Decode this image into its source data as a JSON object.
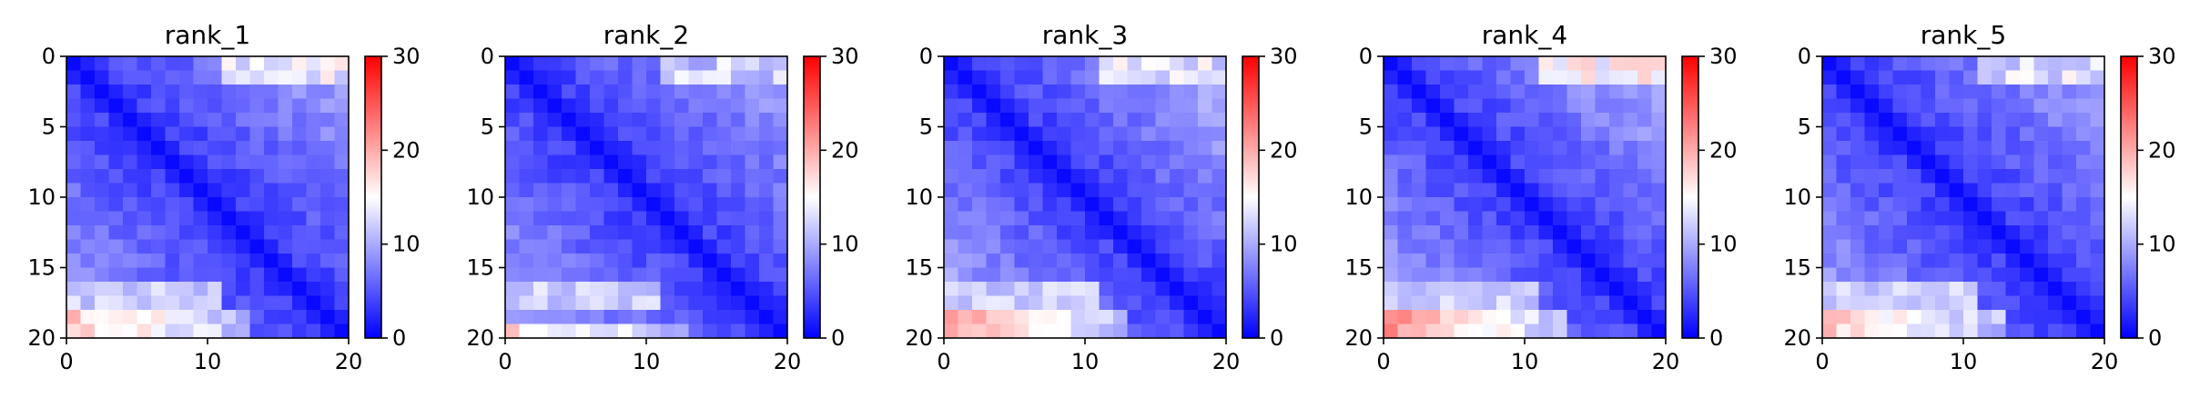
{
  "chart_data": [
    {
      "type": "heatmap",
      "title": "rank_1",
      "grid_size": 20,
      "xlim": [
        0,
        20
      ],
      "ylim": [
        20,
        0
      ],
      "x_ticks": [
        "0",
        "10",
        "20"
      ],
      "y_ticks": [
        "0",
        "5",
        "10",
        "15",
        "20"
      ],
      "colorbar": {
        "range": [
          0,
          30
        ],
        "ticks": [
          "0",
          "10",
          "20",
          "30"
        ],
        "colormap": "bwr"
      },
      "pattern": {
        "near_diag": 3,
        "far_diag": 10,
        "hot_rows": [
          18,
          19
        ],
        "hot_value": 18,
        "top_right_value": 15
      }
    },
    {
      "type": "heatmap",
      "title": "rank_2",
      "grid_size": 20,
      "xlim": [
        0,
        20
      ],
      "ylim": [
        20,
        0
      ],
      "x_ticks": [
        "0",
        "10",
        "20"
      ],
      "y_ticks": [
        "0",
        "5",
        "10",
        "15",
        "20"
      ],
      "colorbar": {
        "range": [
          0,
          30
        ],
        "ticks": [
          "0",
          "10",
          "20",
          "30"
        ],
        "colormap": "bwr"
      },
      "pattern": {
        "near_diag": 3,
        "far_diag": 10,
        "hot_rows": [
          19
        ],
        "hot_value": 17,
        "top_right_value": 13
      }
    },
    {
      "type": "heatmap",
      "title": "rank_3",
      "grid_size": 20,
      "xlim": [
        0,
        20
      ],
      "ylim": [
        20,
        0
      ],
      "x_ticks": [
        "0",
        "10",
        "20"
      ],
      "y_ticks": [
        "0",
        "5",
        "10",
        "15",
        "20"
      ],
      "colorbar": {
        "range": [
          0,
          30
        ],
        "ticks": [
          "0",
          "10",
          "20",
          "30"
        ],
        "colormap": "bwr"
      },
      "pattern": {
        "near_diag": 3,
        "far_diag": 11,
        "hot_rows": [
          18,
          19
        ],
        "hot_value": 20,
        "top_right_value": 14
      }
    },
    {
      "type": "heatmap",
      "title": "rank_4",
      "grid_size": 20,
      "xlim": [
        0,
        20
      ],
      "ylim": [
        20,
        0
      ],
      "x_ticks": [
        "0",
        "10",
        "20"
      ],
      "y_ticks": [
        "0",
        "5",
        "10",
        "15",
        "20"
      ],
      "colorbar": {
        "range": [
          0,
          30
        ],
        "ticks": [
          "0",
          "10",
          "20",
          "30"
        ],
        "colormap": "bwr"
      },
      "pattern": {
        "near_diag": 3,
        "far_diag": 11,
        "hot_rows": [
          18,
          19
        ],
        "hot_value": 21,
        "top_right_value": 16
      }
    },
    {
      "type": "heatmap",
      "title": "rank_5",
      "grid_size": 20,
      "xlim": [
        0,
        20
      ],
      "ylim": [
        20,
        0
      ],
      "x_ticks": [
        "0",
        "10",
        "20"
      ],
      "y_ticks": [
        "0",
        "5",
        "10",
        "15",
        "20"
      ],
      "colorbar": {
        "range": [
          0,
          30
        ],
        "ticks": [
          "0",
          "10",
          "20",
          "30"
        ],
        "colormap": "bwr"
      },
      "pattern": {
        "near_diag": 3,
        "far_diag": 10,
        "hot_rows": [
          18,
          19
        ],
        "hot_value": 18,
        "top_right_value": 14
      }
    }
  ]
}
